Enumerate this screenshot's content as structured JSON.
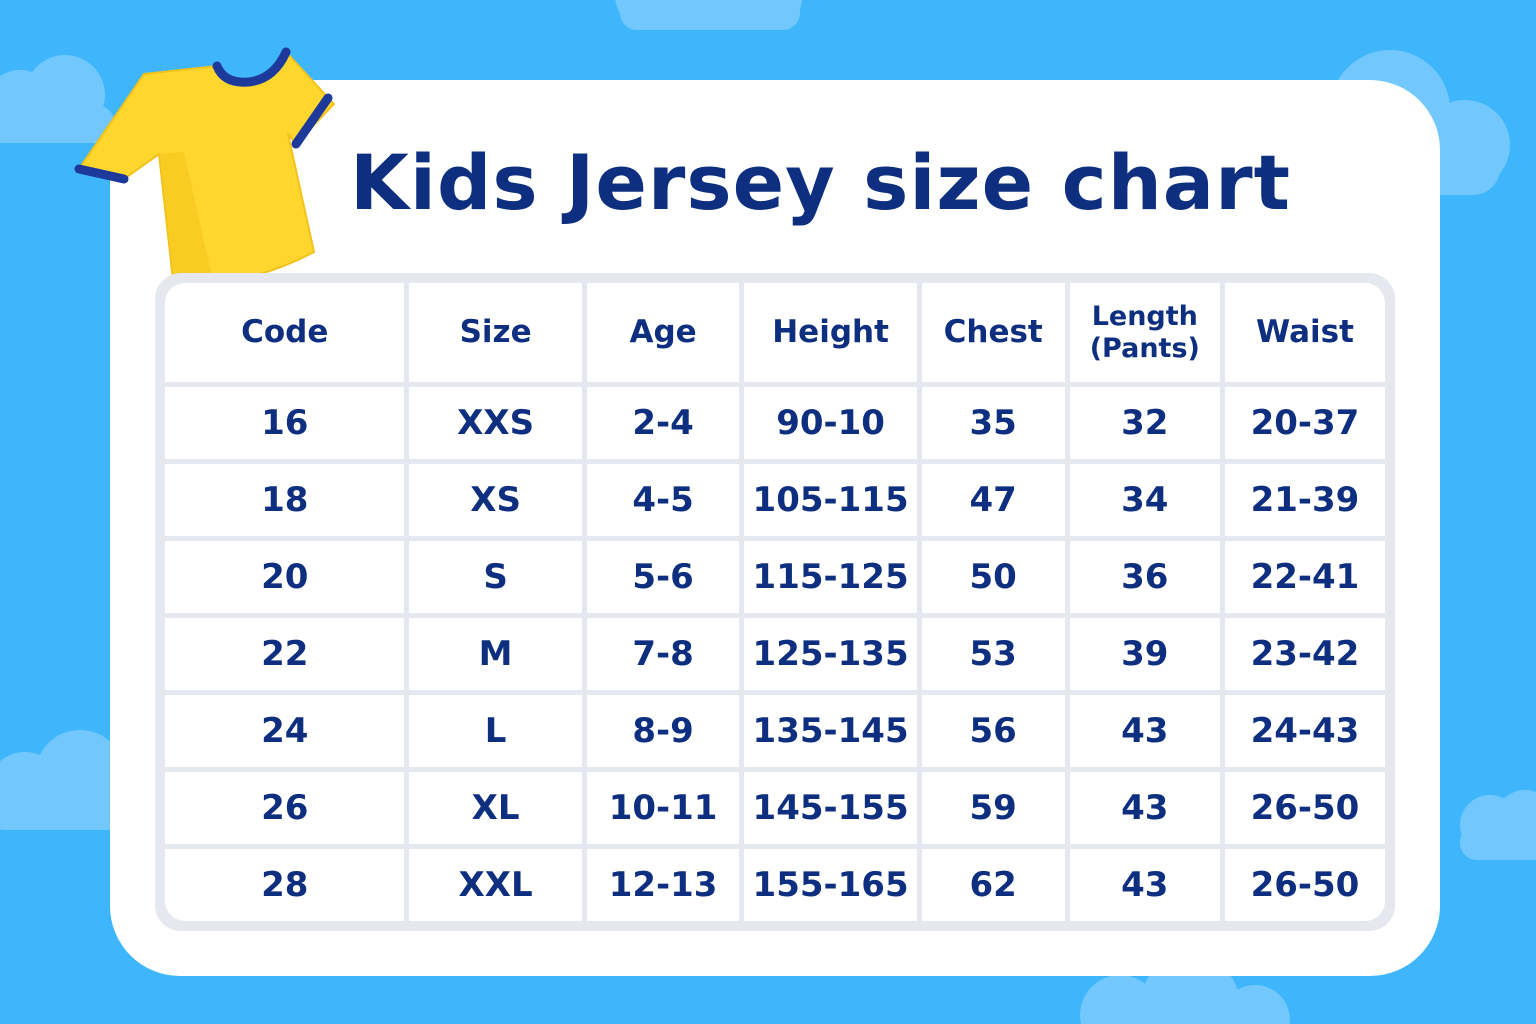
{
  "title": "Kids Jersey size chart",
  "colors": {
    "background": "#3fb6fb",
    "cloud": "#72c8fc",
    "card": "#ffffff",
    "text": "#0e2f80",
    "shirt": "#ffd62e",
    "shirt_trim": "#1d3a9a",
    "grid": "#e5e8ee"
  },
  "icons": {
    "shirt": "yellow-tshirt-icon"
  },
  "table": {
    "headers": [
      "Code",
      "Size",
      "Age",
      "Height",
      "Chest",
      "Length (Pants)",
      "Waist"
    ],
    "header_length_line1": "Length",
    "header_length_line2": "(Pants)",
    "rows": [
      [
        "16",
        "XXS",
        "2-4",
        "90-10",
        "35",
        "32",
        "20-37"
      ],
      [
        "18",
        "XS",
        "4-5",
        "105-115",
        "47",
        "34",
        "21-39"
      ],
      [
        "20",
        "S",
        "5-6",
        "115-125",
        "50",
        "36",
        "22-41"
      ],
      [
        "22",
        "M",
        "7-8",
        "125-135",
        "53",
        "39",
        "23-42"
      ],
      [
        "24",
        "L",
        "8-9",
        "135-145",
        "56",
        "43",
        "24-43"
      ],
      [
        "26",
        "XL",
        "10-11",
        "145-155",
        "59",
        "43",
        "26-50"
      ],
      [
        "28",
        "XXL",
        "12-13",
        "155-165",
        "62",
        "43",
        "26-50"
      ]
    ]
  }
}
